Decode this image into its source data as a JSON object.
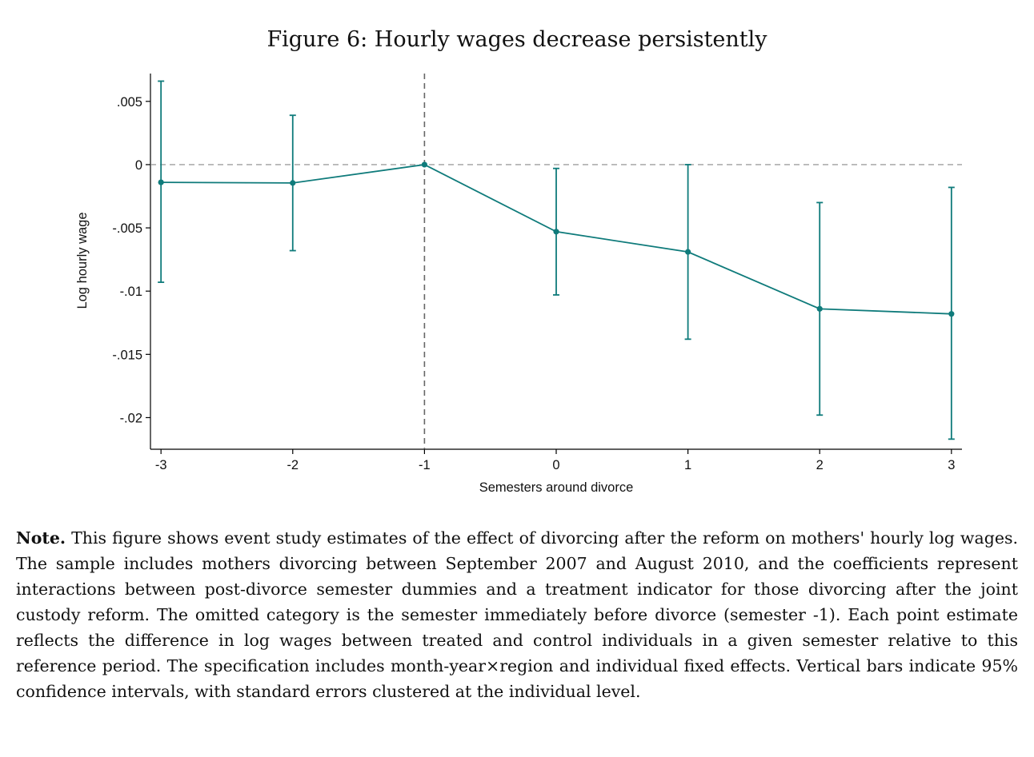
{
  "figure": {
    "title": "Figure 6: Hourly wages decrease persistently"
  },
  "note": {
    "label": "Note.",
    "text": "This figure shows event study estimates of the effect of divorcing after the reform on mothers' hourly log wages. The sample includes mothers divorcing between September 2007 and August 2010, and the coefficients represent interactions between post-divorce semester dummies and a treatment indicator for those divorcing after the joint custody reform. The omitted category is the semester immediately before divorce (semester -1). Each point estimate reflects the difference in log wages between treated and control individuals in a given semester relative to this reference period. The specification includes month-year×region and individual fixed effects. Vertical bars indicate 95% confidence intervals, with standard errors clustered at the individual level."
  },
  "chart_data": {
    "type": "line",
    "title": "Figure 6: Hourly wages decrease persistently",
    "xlabel": "Semesters around divorce",
    "ylabel": "Log hourly wage",
    "x": [
      -3,
      -2,
      -1,
      0,
      1,
      2,
      3
    ],
    "x_tick_labels": [
      "-3",
      "-2",
      "-1",
      "0",
      "1",
      "2",
      "3"
    ],
    "y_ticks": [
      0.005,
      0,
      -0.005,
      -0.01,
      -0.015,
      -0.02
    ],
    "y_tick_labels": [
      ".005",
      "0",
      "-.005",
      "-.01",
      "-.015",
      "-.02"
    ],
    "ylim": [
      -0.0225,
      0.0072
    ],
    "xlim": [
      -3.08,
      3.08
    ],
    "series": [
      {
        "values": [
          -0.0014,
          -0.00145,
          0,
          -0.0053,
          -0.0069,
          -0.0114,
          -0.0118
        ],
        "ci_upper": [
          0.0066,
          0.0039,
          0,
          -0.0003,
          0,
          -0.003,
          -0.0018
        ],
        "ci_lower": [
          -0.0093,
          -0.0068,
          0,
          -0.0103,
          -0.0138,
          -0.0198,
          -0.0217
        ],
        "color": "#0f7b7b"
      }
    ],
    "reference_lines": {
      "horizontal_y": 0,
      "vertical_x": -1,
      "color": "#8a8a8a",
      "style": "dashed"
    },
    "grid": false
  }
}
